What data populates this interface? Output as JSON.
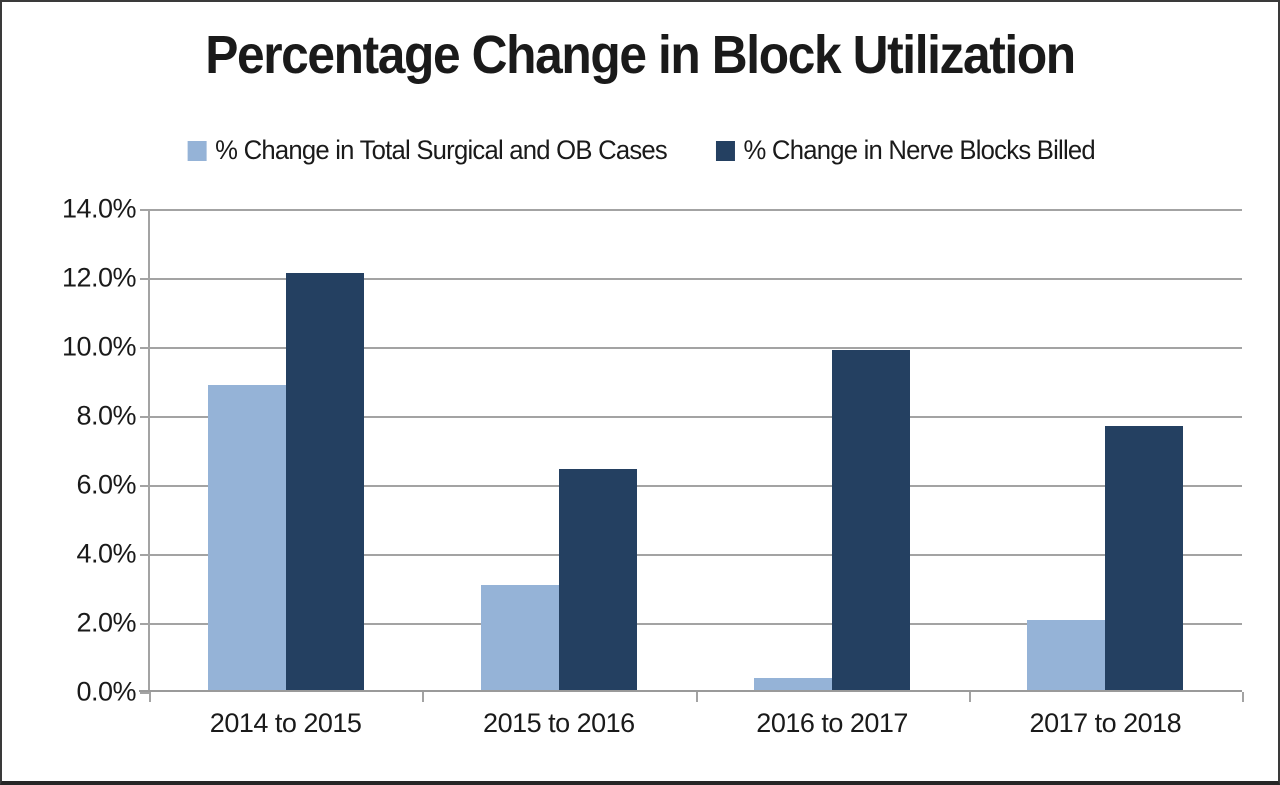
{
  "chart_data": {
    "type": "bar",
    "title": "Percentage Change in Block Utilization",
    "categories": [
      "2014 to 2015",
      "2015 to 2016",
      "2016 to 2017",
      "2017 to 2018"
    ],
    "series": [
      {
        "name": "% Change in Total Surgical and OB Cases",
        "color": "#95B3D7",
        "values": [
          8.9,
          3.1,
          0.4,
          2.1
        ]
      },
      {
        "name": "% Change in Nerve Blocks Billed",
        "color": "#244061",
        "values": [
          12.15,
          6.45,
          9.9,
          7.7
        ]
      }
    ],
    "xlabel": "",
    "ylabel": "",
    "ylim": [
      0,
      14
    ],
    "ytick_step": 2,
    "ytick_labels": [
      "0.0%",
      "2.0%",
      "4.0%",
      "6.0%",
      "8.0%",
      "10.0%",
      "12.0%",
      "14.0%"
    ],
    "grid": true,
    "legend_position": "top",
    "colors": {
      "gridline": "#a3a3a3",
      "axis": "#9a9a9a",
      "text": "#1a1a1a",
      "background": "#ffffff"
    }
  }
}
